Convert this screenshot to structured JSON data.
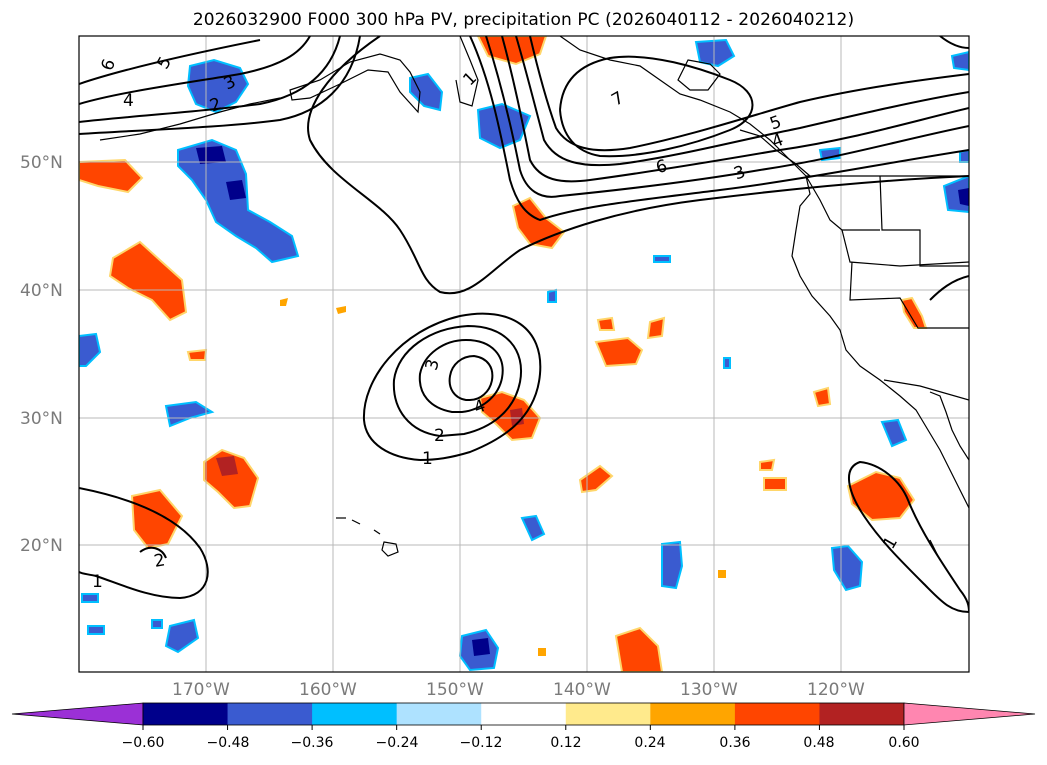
{
  "title": "2026032900 F000 300 hPa PV, precipitation PC (2026040112 - 2026040212)",
  "lat_labels": [
    "50°N",
    "40°N",
    "30°N",
    "20°N"
  ],
  "lon_labels": [
    "170°W",
    "160°W",
    "150°W",
    "140°W",
    "130°W",
    "120°W"
  ],
  "pv_contour_labels": [
    "6",
    "5",
    "4",
    "3",
    "2",
    "1",
    "7",
    "6",
    "5",
    "4",
    "3",
    "3",
    "4",
    "2",
    "1",
    "2",
    "1",
    "1"
  ],
  "colorbar": {
    "ticks": [
      "−0.60",
      "−0.48",
      "−0.36",
      "−0.24",
      "−0.12",
      "0.12",
      "0.24",
      "0.36",
      "0.48",
      "0.60"
    ],
    "colors": [
      "#9b30d6",
      "#00008b",
      "#3a5bd0",
      "#00bfff",
      "#aee2ff",
      "#ffffff",
      "#ffea8c",
      "#ffa500",
      "#ff4500",
      "#b22222",
      "#ff86b0"
    ]
  }
}
